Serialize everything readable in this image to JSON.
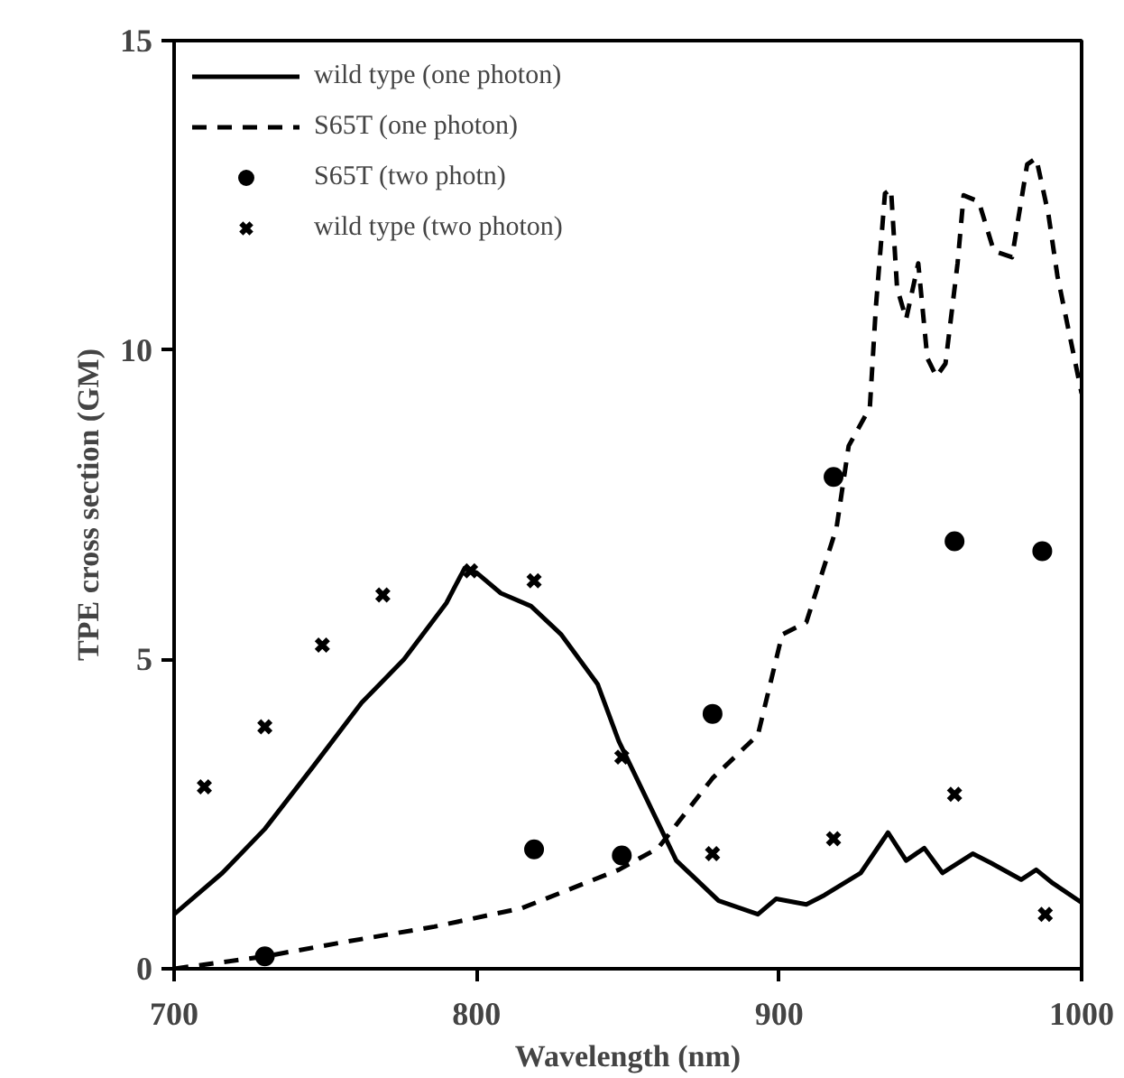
{
  "chart_data": {
    "type": "line",
    "xlabel": "Wavelength (nm)",
    "ylabel": "TPE cross section (GM)",
    "xlim": [
      700,
      1000
    ],
    "ylim": [
      0,
      15
    ],
    "xticks": [
      700,
      800,
      900,
      1000
    ],
    "yticks": [
      0,
      5,
      10,
      15
    ],
    "grid": false,
    "legend": "top left",
    "series": [
      {
        "name": "wild type (one photon)",
        "line_style": "solid",
        "color": "#000000",
        "x": [
          700,
          716,
          730,
          746,
          762,
          776,
          790,
          796,
          800,
          808,
          818,
          828,
          840,
          847,
          866,
          880,
          893,
          899,
          909,
          915,
          927,
          936,
          942,
          948,
          954,
          964,
          970,
          980,
          985,
          990,
          1000
        ],
        "values": [
          0.88,
          1.55,
          2.26,
          3.27,
          4.3,
          5.0,
          5.91,
          6.47,
          6.4,
          6.07,
          5.86,
          5.4,
          4.6,
          3.68,
          1.75,
          1.1,
          0.88,
          1.13,
          1.04,
          1.19,
          1.55,
          2.2,
          1.75,
          1.95,
          1.55,
          1.86,
          1.71,
          1.44,
          1.6,
          1.4,
          1.07
        ]
      },
      {
        "name": "S65T (one photon)",
        "line_style": "dashed",
        "color": "#000000",
        "x": [
          700,
          730,
          756,
          786,
          815,
          847,
          860,
          878,
          893,
          901,
          909,
          919,
          923,
          930,
          932,
          935,
          937,
          939,
          942,
          946,
          949,
          952,
          955,
          959,
          961,
          966,
          971,
          977,
          982,
          985,
          989,
          992,
          1000
        ],
        "values": [
          0.0,
          0.2,
          0.43,
          0.68,
          0.98,
          1.6,
          1.95,
          3.08,
          3.78,
          5.4,
          5.6,
          7.13,
          8.45,
          9.07,
          10.7,
          12.53,
          12.6,
          11.0,
          10.5,
          11.4,
          9.87,
          9.57,
          9.78,
          11.4,
          12.5,
          12.4,
          11.6,
          11.5,
          13.0,
          13.1,
          12.2,
          11.2,
          9.3
        ]
      },
      {
        "name": "S65T (two photn)",
        "type": "scatter",
        "marker": "circle",
        "color": "#000000",
        "x": [
          730,
          819,
          848,
          878,
          918,
          958,
          987
        ],
        "values": [
          0.2,
          1.93,
          1.83,
          4.12,
          7.95,
          6.91,
          6.75
        ]
      },
      {
        "name": "wild type (two photon)",
        "type": "scatter",
        "marker": "cross",
        "color": "#000000",
        "x": [
          710,
          730,
          749,
          769,
          798,
          819,
          848,
          878,
          918,
          958,
          988
        ],
        "values": [
          2.94,
          3.91,
          5.23,
          6.04,
          6.43,
          6.27,
          3.42,
          1.86,
          2.1,
          2.82,
          0.88
        ]
      }
    ]
  }
}
